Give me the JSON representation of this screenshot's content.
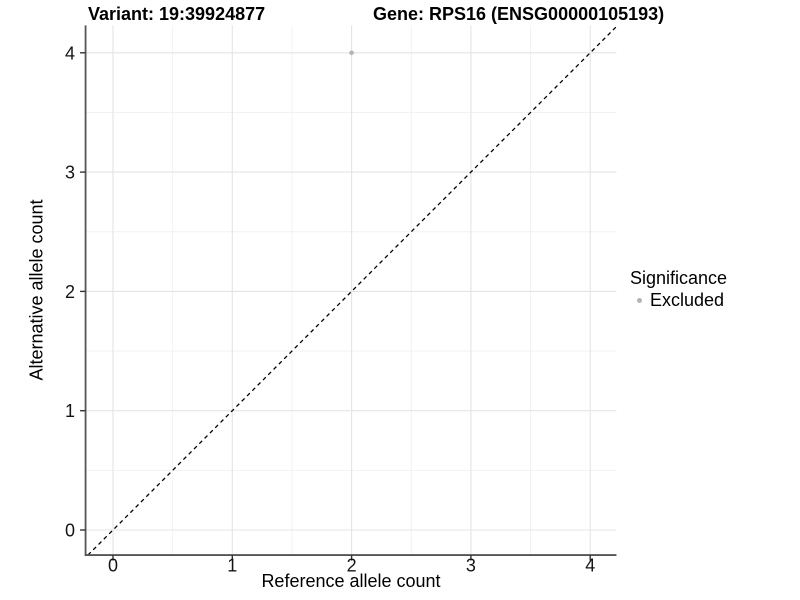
{
  "chart_data": {
    "type": "scatter",
    "title_left": "Variant: 19:39924877",
    "title_right": "Gene: RPS16 (ENSG00000105193)",
    "xlabel": "Reference allele count",
    "ylabel": "Alternative allele count",
    "xticks": [
      "0",
      "1",
      "2",
      "3",
      "4"
    ],
    "yticks": [
      "0",
      "1",
      "2",
      "3",
      "4"
    ],
    "xtick_values": [
      0,
      1,
      2,
      3,
      4
    ],
    "ytick_values": [
      0,
      1,
      2,
      3,
      4
    ],
    "xlim": [
      -0.23,
      4.22
    ],
    "ylim": [
      -0.21,
      4.23
    ],
    "grid": "major and minor gridlines, white panel background",
    "points": [
      {
        "x": 2,
        "y": 4,
        "series": "Excluded"
      }
    ],
    "reference_line": {
      "slope": 1,
      "intercept": 0,
      "style": "dashed",
      "color": "#000000"
    },
    "legend": {
      "title": "Significance",
      "position": "right",
      "items": [
        {
          "label": "Excluded",
          "color": "#b4b4b4",
          "marker": "circle"
        }
      ]
    },
    "colors": {
      "point": "#b4b4b4",
      "grid_major": "#e4e4e4",
      "grid_minor": "#f1f1f1",
      "axis_line": "#555555",
      "tick_mark": "#333333",
      "tick_label": "#141414",
      "text": "#000000",
      "background": "#ffffff"
    }
  }
}
